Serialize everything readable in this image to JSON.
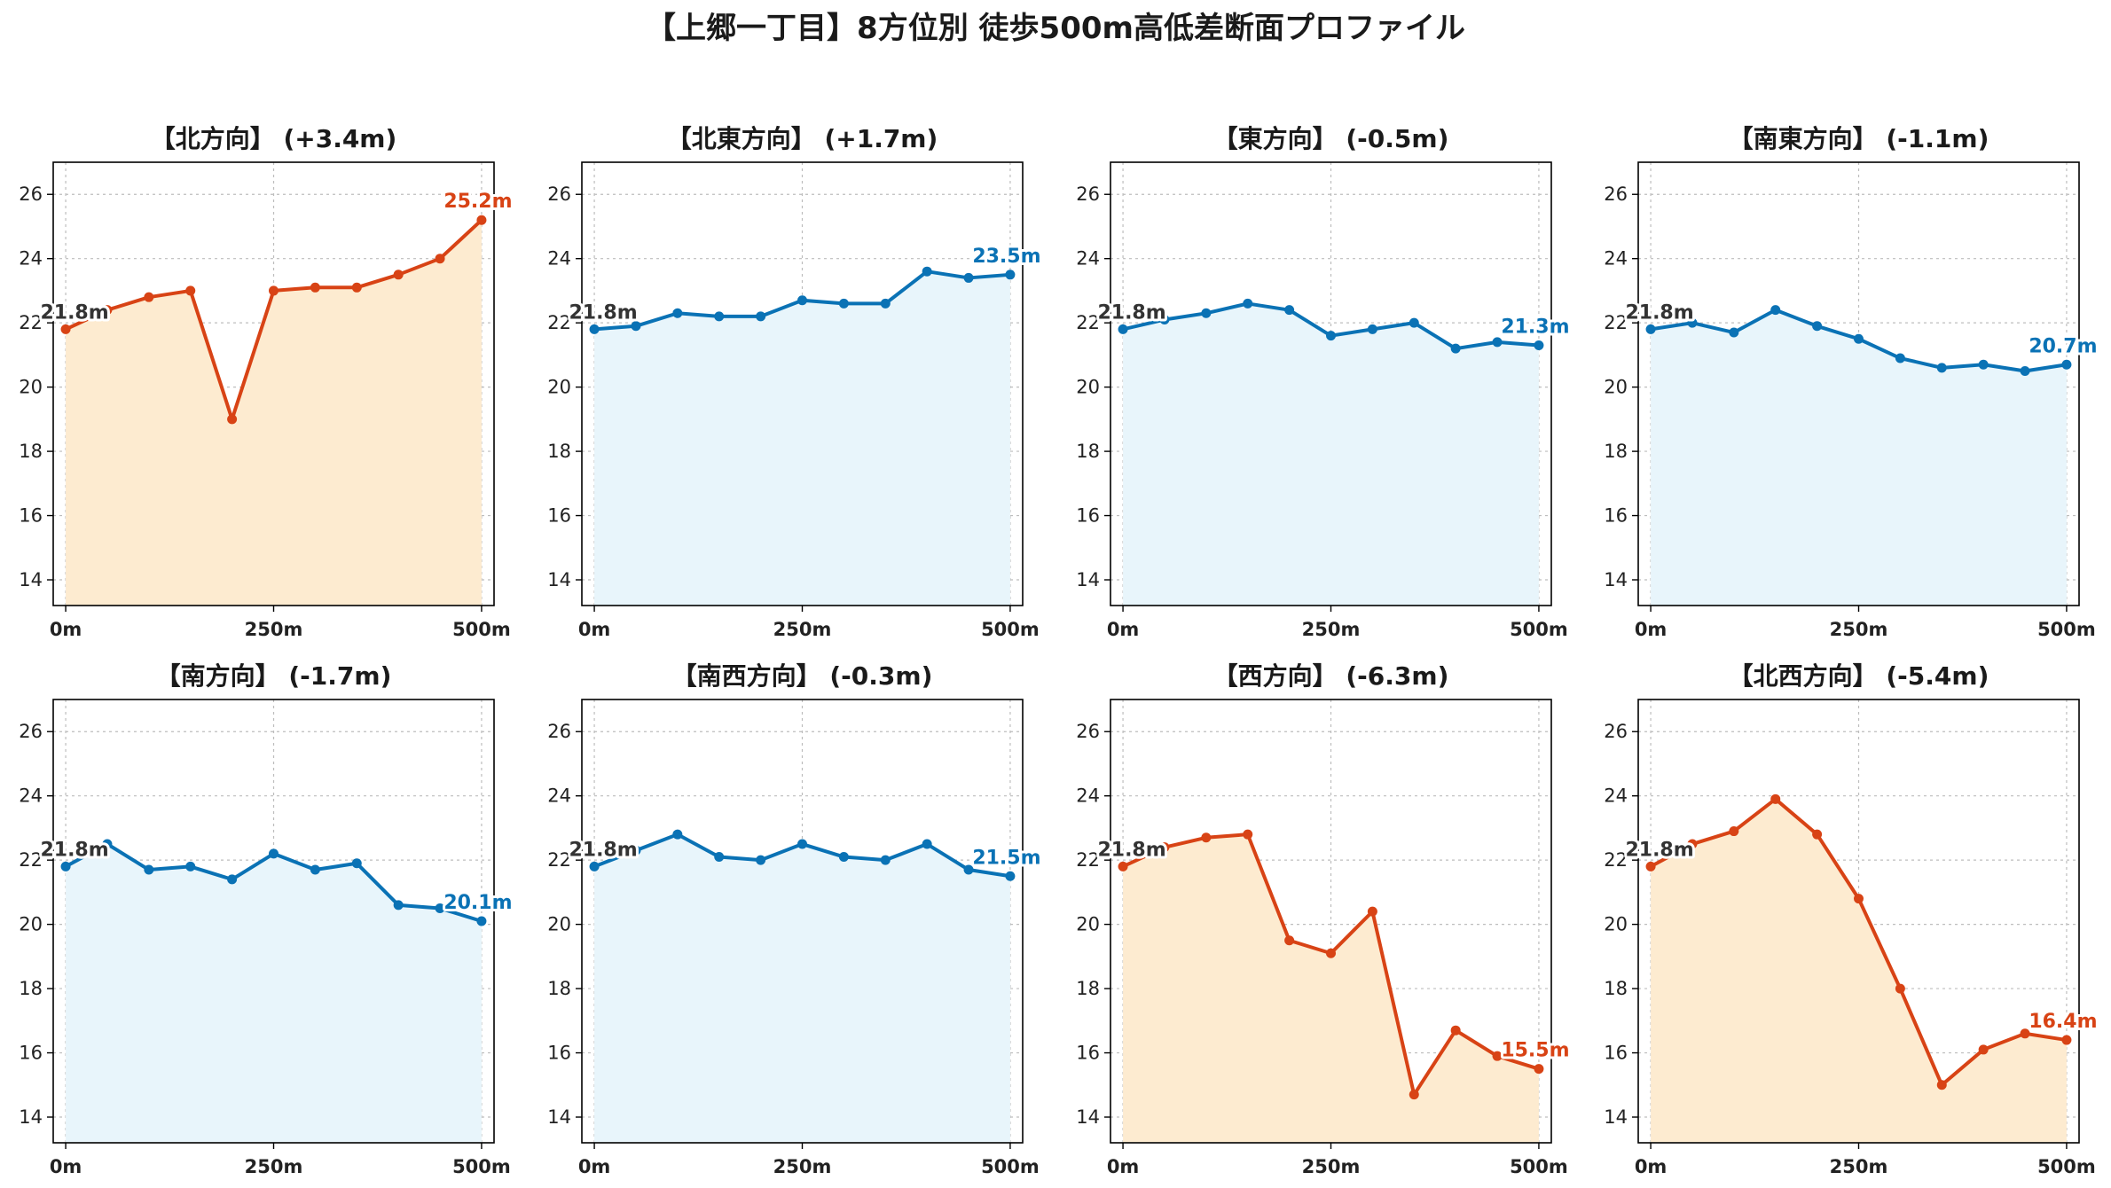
{
  "page": {
    "title": "【上郷一丁目】8方位別 徒歩500m高低差断面プロファイル"
  },
  "colors": {
    "up_line": "#d84315",
    "up_fill": "#fdebd0",
    "down_line": "#0a72b5",
    "down_fill": "#e8f5fb",
    "start_label": "#333333",
    "grid": "#bdbdbd"
  },
  "chart_data": [
    {
      "type": "area",
      "title": "【北方向】 (+3.4m)",
      "trend": "up",
      "x": [
        0,
        50,
        100,
        150,
        200,
        250,
        300,
        350,
        400,
        450,
        500
      ],
      "y": [
        21.8,
        22.4,
        22.8,
        23.0,
        19.0,
        23.0,
        23.1,
        23.1,
        23.5,
        24.0,
        25.2
      ],
      "start_label": "21.8m",
      "end_label": "25.2m",
      "xticks": [
        "0m",
        "250m",
        "500m"
      ],
      "yticks": [
        14,
        16,
        18,
        20,
        22,
        24,
        26
      ],
      "xlim": [
        -15,
        515
      ],
      "ylim": [
        13.2,
        27.0
      ],
      "grid": true
    },
    {
      "type": "area",
      "title": "【北東方向】 (+1.7m)",
      "trend": "down",
      "x": [
        0,
        50,
        100,
        150,
        200,
        250,
        300,
        350,
        400,
        450,
        500
      ],
      "y": [
        21.8,
        21.9,
        22.3,
        22.2,
        22.2,
        22.7,
        22.6,
        22.6,
        23.6,
        23.4,
        23.5
      ],
      "start_label": "21.8m",
      "end_label": "23.5m",
      "xticks": [
        "0m",
        "250m",
        "500m"
      ],
      "yticks": [
        14,
        16,
        18,
        20,
        22,
        24,
        26
      ],
      "xlim": [
        -15,
        515
      ],
      "ylim": [
        13.2,
        27.0
      ],
      "grid": true
    },
    {
      "type": "area",
      "title": "【東方向】 (-0.5m)",
      "trend": "down",
      "x": [
        0,
        50,
        100,
        150,
        200,
        250,
        300,
        350,
        400,
        450,
        500
      ],
      "y": [
        21.8,
        22.1,
        22.3,
        22.6,
        22.4,
        21.6,
        21.8,
        22.0,
        21.2,
        21.4,
        21.3
      ],
      "start_label": "21.8m",
      "end_label": "21.3m",
      "xticks": [
        "0m",
        "250m",
        "500m"
      ],
      "yticks": [
        14,
        16,
        18,
        20,
        22,
        24,
        26
      ],
      "xlim": [
        -15,
        515
      ],
      "ylim": [
        13.2,
        27.0
      ],
      "grid": true
    },
    {
      "type": "area",
      "title": "【南東方向】 (-1.1m)",
      "trend": "down",
      "x": [
        0,
        50,
        100,
        150,
        200,
        250,
        300,
        350,
        400,
        450,
        500
      ],
      "y": [
        21.8,
        22.0,
        21.7,
        22.4,
        21.9,
        21.5,
        20.9,
        20.6,
        20.7,
        20.5,
        20.7
      ],
      "start_label": "21.8m",
      "end_label": "20.7m",
      "xticks": [
        "0m",
        "250m",
        "500m"
      ],
      "yticks": [
        14,
        16,
        18,
        20,
        22,
        24,
        26
      ],
      "xlim": [
        -15,
        515
      ],
      "ylim": [
        13.2,
        27.0
      ],
      "grid": true
    },
    {
      "type": "area",
      "title": "【南方向】 (-1.7m)",
      "trend": "down",
      "x": [
        0,
        50,
        100,
        150,
        200,
        250,
        300,
        350,
        400,
        450,
        500
      ],
      "y": [
        21.8,
        22.5,
        21.7,
        21.8,
        21.4,
        22.2,
        21.7,
        21.9,
        20.6,
        20.5,
        20.1
      ],
      "start_label": "21.8m",
      "end_label": "20.1m",
      "xticks": [
        "0m",
        "250m",
        "500m"
      ],
      "yticks": [
        14,
        16,
        18,
        20,
        22,
        24,
        26
      ],
      "xlim": [
        -15,
        515
      ],
      "ylim": [
        13.2,
        27.0
      ],
      "grid": true
    },
    {
      "type": "area",
      "title": "【南西方向】 (-0.3m)",
      "trend": "down",
      "x": [
        0,
        50,
        100,
        150,
        200,
        250,
        300,
        350,
        400,
        450,
        500
      ],
      "y": [
        21.8,
        22.3,
        22.8,
        22.1,
        22.0,
        22.5,
        22.1,
        22.0,
        22.5,
        21.7,
        21.5
      ],
      "start_label": "21.8m",
      "end_label": "21.5m",
      "xticks": [
        "0m",
        "250m",
        "500m"
      ],
      "yticks": [
        14,
        16,
        18,
        20,
        22,
        24,
        26
      ],
      "xlim": [
        -15,
        515
      ],
      "ylim": [
        13.2,
        27.0
      ],
      "grid": true
    },
    {
      "type": "area",
      "title": "【西方向】 (-6.3m)",
      "trend": "up",
      "x": [
        0,
        50,
        100,
        150,
        200,
        250,
        300,
        350,
        400,
        450,
        500
      ],
      "y": [
        21.8,
        22.4,
        22.7,
        22.8,
        19.5,
        19.1,
        20.4,
        14.7,
        16.7,
        15.9,
        15.5
      ],
      "start_label": "21.8m",
      "end_label": "15.5m",
      "xticks": [
        "0m",
        "250m",
        "500m"
      ],
      "yticks": [
        14,
        16,
        18,
        20,
        22,
        24,
        26
      ],
      "xlim": [
        -15,
        515
      ],
      "ylim": [
        13.2,
        27.0
      ],
      "grid": true
    },
    {
      "type": "area",
      "title": "【北西方向】 (-5.4m)",
      "trend": "up",
      "x": [
        0,
        50,
        100,
        150,
        200,
        250,
        300,
        350,
        400,
        450,
        500
      ],
      "y": [
        21.8,
        22.5,
        22.9,
        23.9,
        22.8,
        20.8,
        18.0,
        15.0,
        16.1,
        16.6,
        16.4
      ],
      "start_label": "21.8m",
      "end_label": "16.4m",
      "xticks": [
        "0m",
        "250m",
        "500m"
      ],
      "yticks": [
        14,
        16,
        18,
        20,
        22,
        24,
        26
      ],
      "xlim": [
        -15,
        515
      ],
      "ylim": [
        13.2,
        27.0
      ],
      "grid": true
    }
  ]
}
